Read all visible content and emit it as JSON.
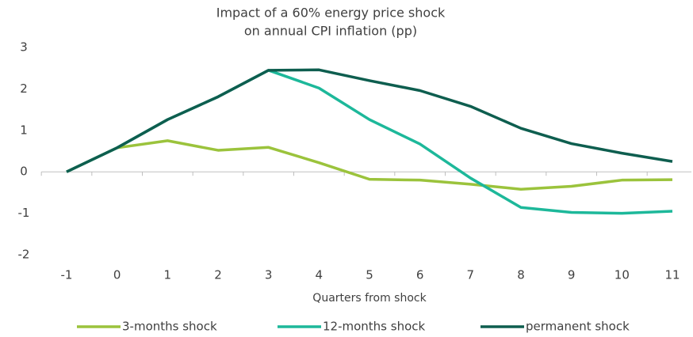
{
  "chart_data": {
    "type": "line",
    "title": [
      "Impact of a 60% energy price shock",
      "on annual CPI inflation (pp)"
    ],
    "x_label": "Quarters from shock",
    "categories": [
      -1,
      0,
      1,
      2,
      3,
      4,
      5,
      6,
      7,
      8,
      9,
      10,
      11
    ],
    "series": [
      {
        "name": "3-months shock",
        "color": "#9bc33c",
        "values": [
          0,
          0.58,
          0.75,
          0.52,
          0.59,
          0.22,
          -0.18,
          -0.2,
          -0.3,
          -0.42,
          -0.35,
          -0.2,
          -0.19
        ]
      },
      {
        "name": "12-months shock",
        "color": "#1db89a",
        "values": [
          0,
          0.58,
          1.26,
          1.81,
          2.45,
          2.02,
          1.26,
          0.67,
          -0.15,
          -0.86,
          -0.98,
          -1.0,
          -0.95
        ]
      },
      {
        "name": "permanent shock",
        "color": "#0e5e4f",
        "values": [
          0,
          0.58,
          1.26,
          1.81,
          2.45,
          2.46,
          2.2,
          1.96,
          1.58,
          1.05,
          0.68,
          0.45,
          0.25
        ]
      }
    ],
    "ylim": [
      -2,
      3
    ],
    "yticks": [
      -2,
      -1,
      0,
      1,
      2,
      3
    ],
    "legend": "bottom"
  }
}
